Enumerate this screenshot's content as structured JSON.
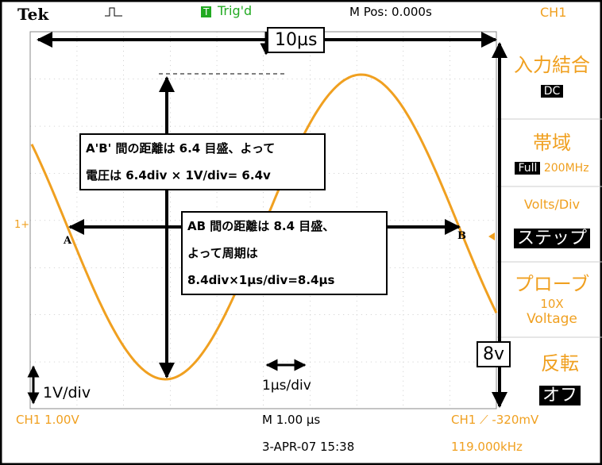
{
  "header": {
    "brand": "Tek",
    "trigger_icon": "T",
    "trigger_status": "Trig'd",
    "position": "M Pos: 0.000s",
    "channel": "CH1"
  },
  "menu": [
    {
      "title": "入力結合",
      "value": "DC"
    },
    {
      "title": "帯域",
      "value": "Full",
      "extra": "200MHz"
    },
    {
      "title": "Volts/Div",
      "value": "ステップ"
    },
    {
      "title": "プローブ",
      "value": "10X",
      "extra": "Voltage"
    },
    {
      "title": "反転",
      "value": "オフ"
    }
  ],
  "annotations": {
    "time_span": "10µs",
    "voltage_span": "8v",
    "volts_div": "1V/div",
    "time_div": "1µs/div",
    "point_a": "A",
    "point_b": "B",
    "ground_marker": "1+",
    "voltage_box": [
      "A'B' 間の距離は 6.4 目盛、よって",
      "電圧は 6.4div × 1V/div= 6.4v"
    ],
    "period_box": [
      "AB 間の距離は 8.4 目盛、",
      "よって周期は",
      "8.4div×1µs/div=8.4µs"
    ]
  },
  "footer": {
    "ch1_scale": "CH1  1.00V",
    "time_scale": "M 1.00 µs",
    "trigger": "CH1 ⟋ -320mV",
    "date": "3-APR-07 15:38",
    "frequency": "119.000kHz"
  }
}
